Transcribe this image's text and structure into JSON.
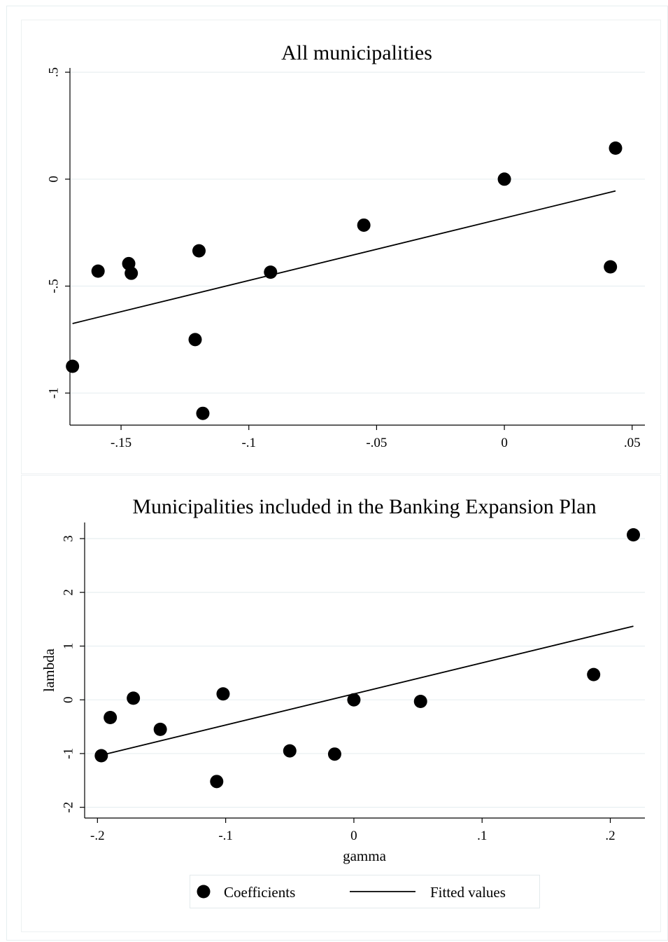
{
  "chart_data": [
    {
      "type": "scatter",
      "title": "All municipalities",
      "xlabel": "",
      "ylabel": "",
      "xlim": [
        -0.17,
        0.055
      ],
      "ylim": [
        -1.15,
        0.52
      ],
      "xticks": [
        -0.15,
        -0.1,
        -0.05,
        0,
        0.05
      ],
      "xtick_labels": [
        "-.15",
        "-.1",
        "-.05",
        "0",
        ".05"
      ],
      "yticks": [
        -1,
        -0.5,
        0,
        0.5
      ],
      "ytick_labels": [
        "-1",
        "-.5",
        "0",
        ".5"
      ],
      "grid": true,
      "series": [
        {
          "name": "Coefficients",
          "kind": "scatter",
          "x": [
            -0.169,
            -0.159,
            -0.147,
            -0.146,
            -0.121,
            -0.1195,
            -0.118,
            -0.0915,
            -0.055,
            0.0,
            0.0415,
            0.0435
          ],
          "y": [
            -0.875,
            -0.43,
            -0.395,
            -0.44,
            -0.75,
            -0.335,
            -1.095,
            -0.435,
            -0.215,
            0.0,
            -0.41,
            0.145
          ]
        },
        {
          "name": "Fitted values",
          "kind": "line",
          "x": [
            -0.169,
            0.0435
          ],
          "y": [
            -0.675,
            -0.055
          ]
        }
      ]
    },
    {
      "type": "scatter",
      "title": "Municipalities included in the Banking Expansion Plan",
      "xlabel": "gamma",
      "ylabel": "lambda",
      "xlim": [
        -0.21,
        0.227
      ],
      "ylim": [
        -2.2,
        3.3
      ],
      "xticks": [
        -0.2,
        -0.1,
        0,
        0.1,
        0.2
      ],
      "xtick_labels": [
        "-.2",
        "-.1",
        "0",
        ".1",
        ".2"
      ],
      "yticks": [
        -2,
        -1,
        0,
        1,
        2,
        3
      ],
      "ytick_labels": [
        "-2",
        "-1",
        "0",
        "1",
        "2",
        "3"
      ],
      "grid": true,
      "series": [
        {
          "name": "Coefficients",
          "kind": "scatter",
          "x": [
            -0.197,
            -0.19,
            -0.172,
            -0.151,
            -0.107,
            -0.102,
            -0.05,
            -0.015,
            0.0,
            0.052,
            0.187,
            0.218
          ],
          "y": [
            -1.04,
            -0.33,
            0.03,
            -0.55,
            -1.52,
            0.11,
            -0.95,
            -1.01,
            0.0,
            -0.03,
            0.47,
            3.07
          ]
        },
        {
          "name": "Fitted values",
          "kind": "line",
          "x": [
            -0.197,
            0.218
          ],
          "y": [
            -1.03,
            1.37
          ]
        }
      ]
    }
  ],
  "legend": {
    "placement": "bottom",
    "items": [
      {
        "label": "Coefficients",
        "marker": "circle"
      },
      {
        "label": "Fitted values",
        "marker": "line"
      }
    ]
  }
}
